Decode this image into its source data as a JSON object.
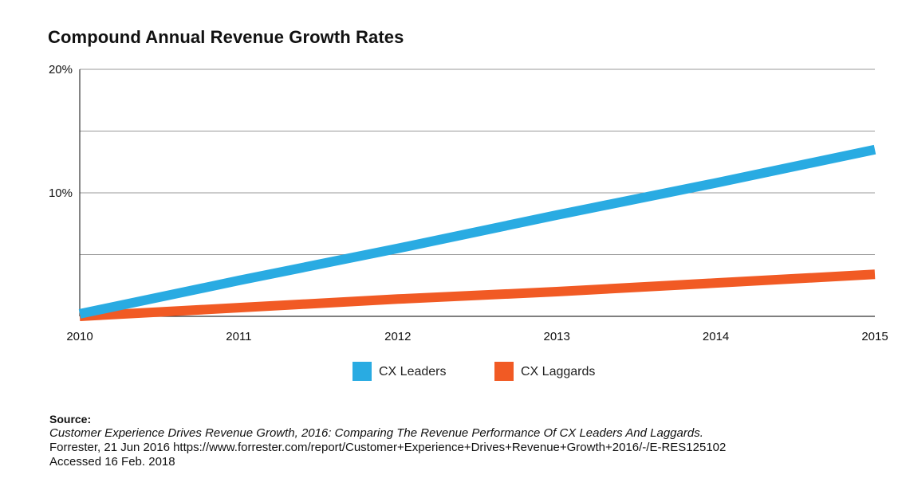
{
  "chart_data": {
    "type": "line",
    "title": "Compound Annual Revenue Growth Rates",
    "x": [
      "2010",
      "2011",
      "2012",
      "2013",
      "2014",
      "2015"
    ],
    "ylim": [
      0,
      20
    ],
    "yticks": [
      0,
      5,
      10,
      15,
      20
    ],
    "ytick_labels": {
      "10": "10%",
      "20": "20%"
    },
    "series": [
      {
        "name": "CX Leaders",
        "color": "#29abe2",
        "values": [
          0.2,
          2.9,
          5.5,
          8.2,
          10.8,
          13.5
        ]
      },
      {
        "name": "CX Laggards",
        "color": "#f15a24",
        "values": [
          0,
          0.7,
          1.4,
          2.0,
          2.7,
          3.4
        ]
      }
    ],
    "legend": "bottom-center",
    "grid": true
  },
  "source": {
    "label": "Source:",
    "reference": "Customer Experience Drives Revenue Growth, 2016: Comparing The Revenue Performance Of CX Leaders And Laggards.",
    "line2": "Forrester, 21 Jun 2016 https://www.forrester.com/report/Customer+Experience+Drives+Revenue+Growth+2016/-/E-RES125102",
    "line3": "Accessed 16 Feb. 2018"
  }
}
